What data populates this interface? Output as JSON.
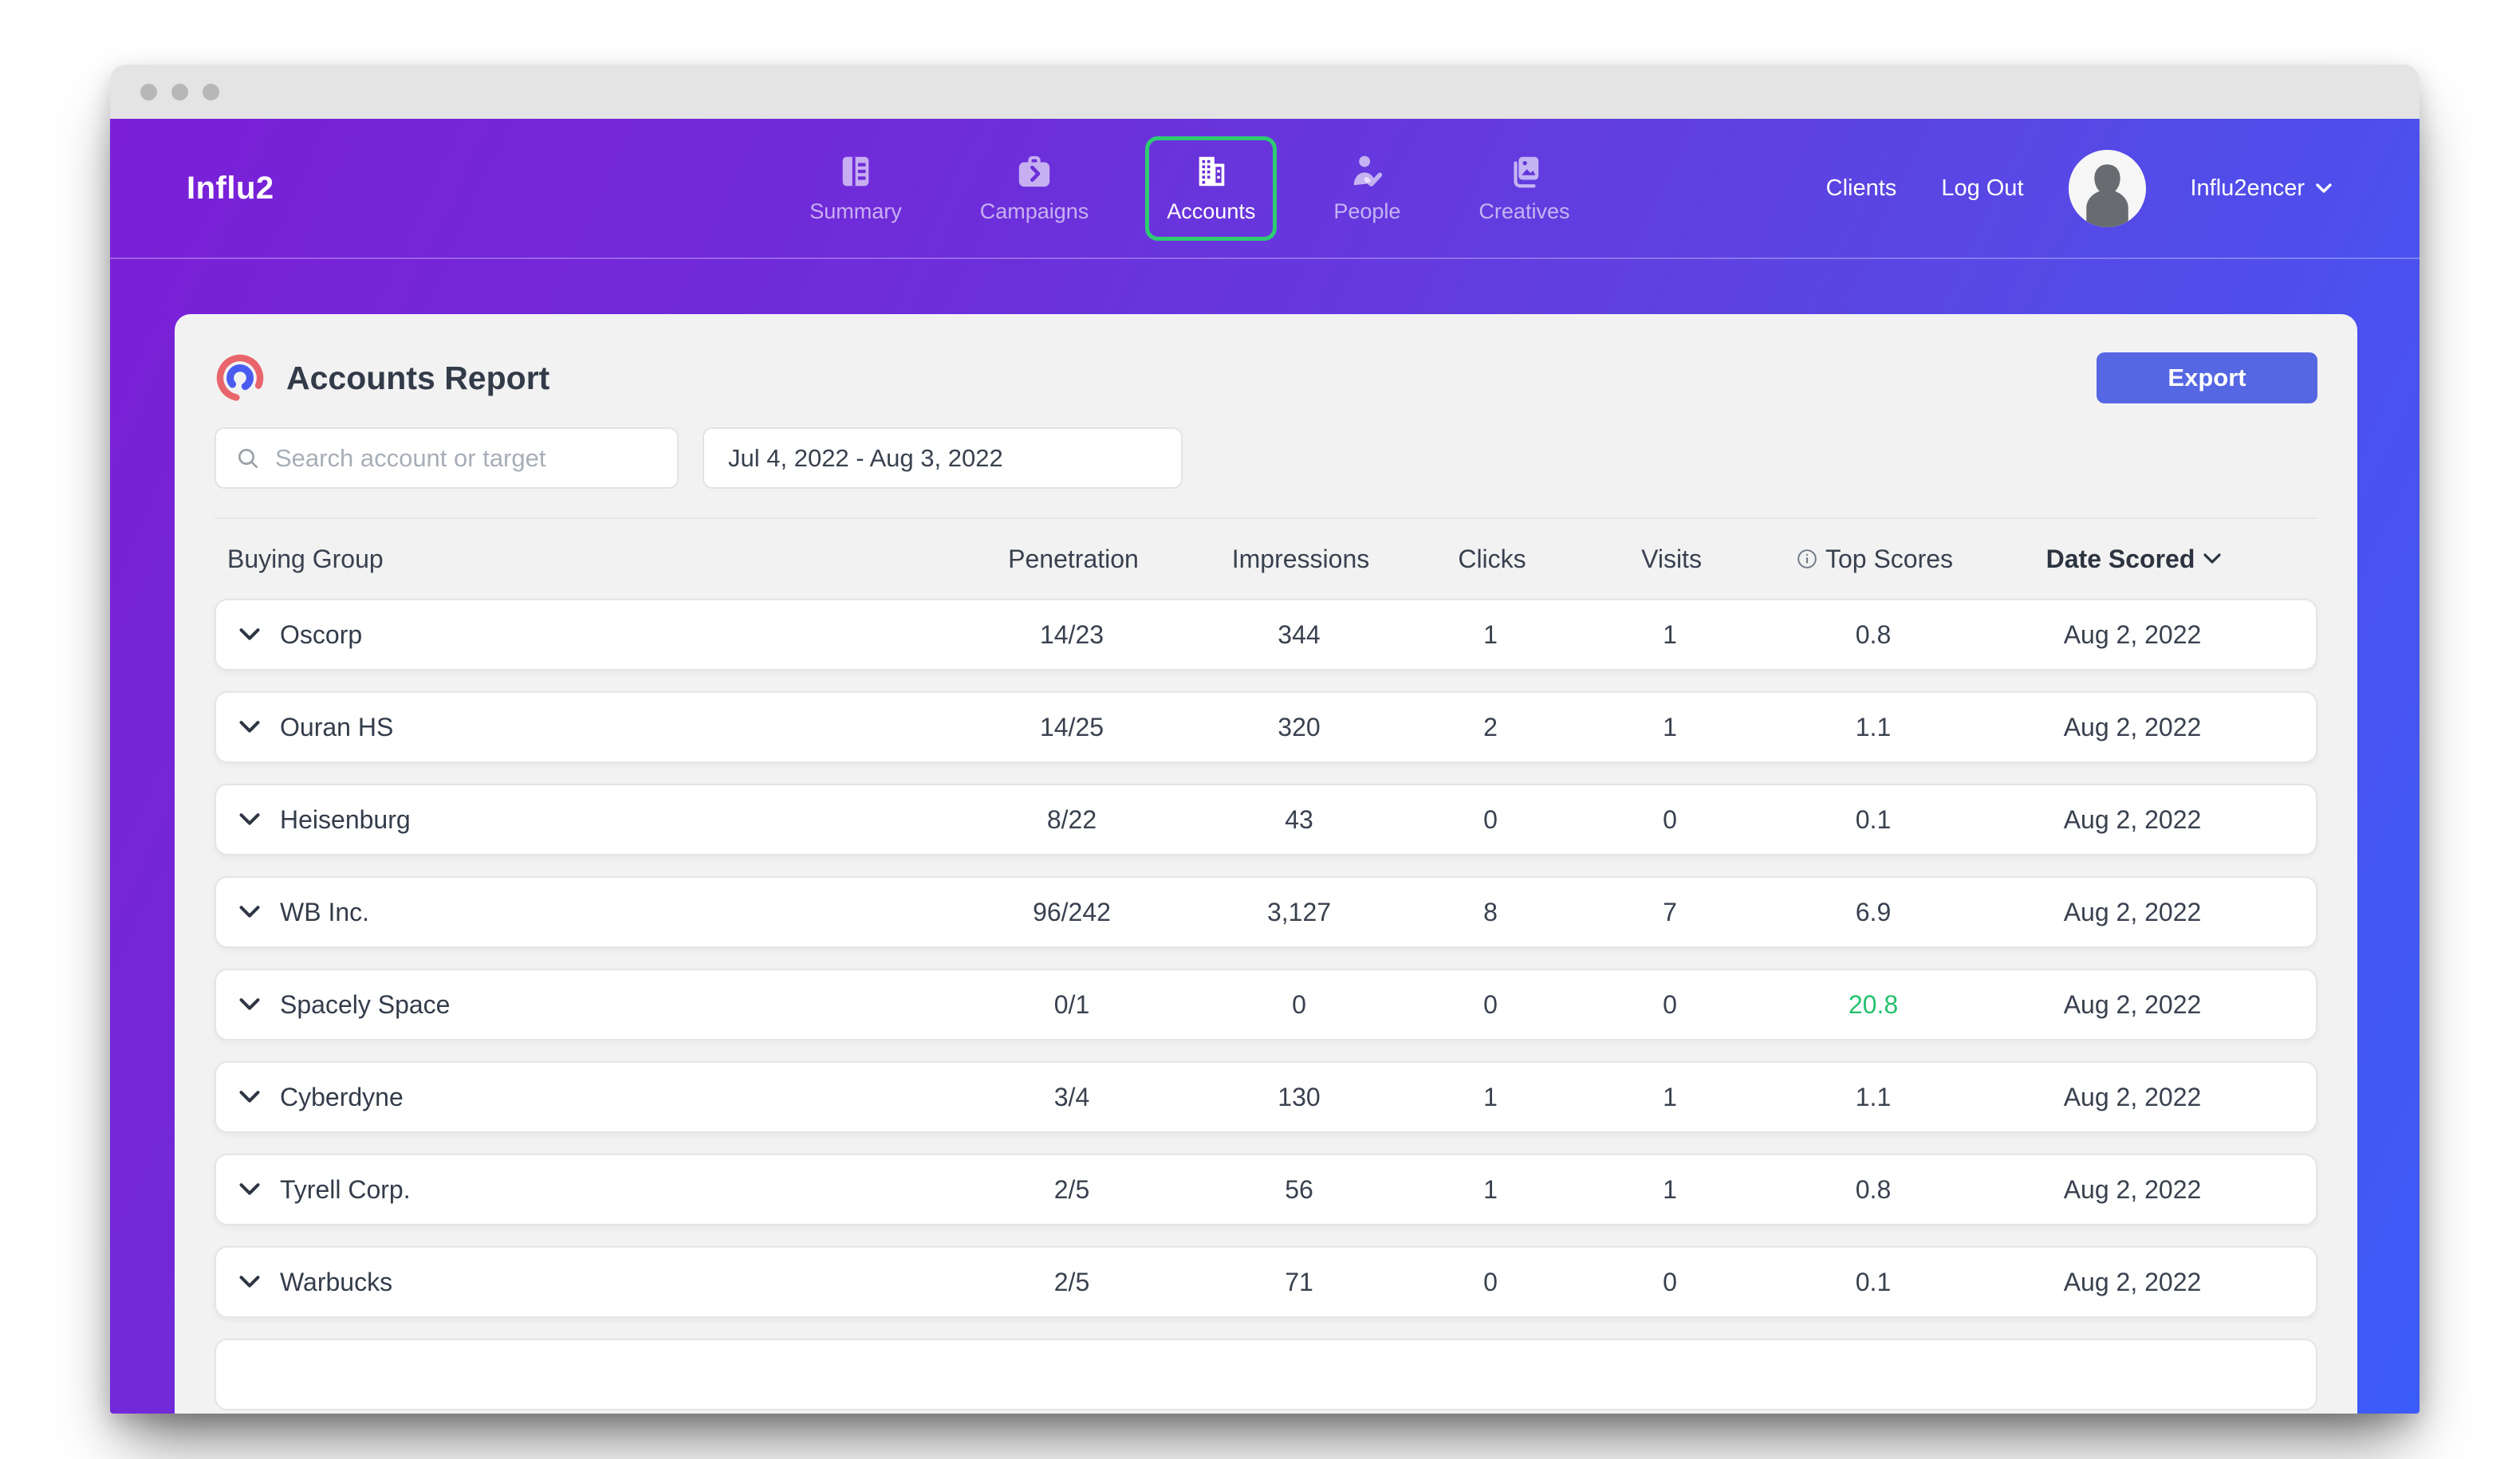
{
  "window": {
    "chrome": "mac-titlebar-inactive"
  },
  "navbar": {
    "logo": "Influ2",
    "tabs": [
      {
        "id": "summary",
        "label": "Summary",
        "icon": "report-icon",
        "active": false
      },
      {
        "id": "campaigns",
        "label": "Campaigns",
        "icon": "briefcase-icon",
        "active": false
      },
      {
        "id": "accounts",
        "label": "Accounts",
        "icon": "building-icon",
        "active": true
      },
      {
        "id": "people",
        "label": "People",
        "icon": "person-check-icon",
        "active": false
      },
      {
        "id": "creatives",
        "label": "Creatives",
        "icon": "image-stack-icon",
        "active": false
      }
    ],
    "right": {
      "clients_label": "Clients",
      "logout_label": "Log Out",
      "account_name": "Influ2encer"
    }
  },
  "report": {
    "title": "Accounts Report",
    "export_label": "Export",
    "search_placeholder": "Search account or target",
    "search_value": "",
    "date_range": "Jul 4, 2022 - Aug 3, 2022"
  },
  "table": {
    "columns": [
      "Buying Group",
      "Penetration",
      "Impressions",
      "Clicks",
      "Visits",
      "Top Scores",
      "Date Scored"
    ],
    "sorted_by": "Date Scored",
    "rows": [
      {
        "name": "Oscorp",
        "penetration": "14/23",
        "impressions": "344",
        "clicks": "1",
        "visits": "1",
        "top_score": "0.8",
        "top_score_highlight": false,
        "date_scored": "Aug 2, 2022"
      },
      {
        "name": "Ouran HS",
        "penetration": "14/25",
        "impressions": "320",
        "clicks": "2",
        "visits": "1",
        "top_score": "1.1",
        "top_score_highlight": false,
        "date_scored": "Aug 2, 2022"
      },
      {
        "name": "Heisenburg",
        "penetration": "8/22",
        "impressions": "43",
        "clicks": "0",
        "visits": "0",
        "top_score": "0.1",
        "top_score_highlight": false,
        "date_scored": "Aug 2, 2022"
      },
      {
        "name": "WB Inc.",
        "penetration": "96/242",
        "impressions": "3,127",
        "clicks": "8",
        "visits": "7",
        "top_score": "6.9",
        "top_score_highlight": false,
        "date_scored": "Aug 2, 2022"
      },
      {
        "name": "Spacely Space",
        "penetration": "0/1",
        "impressions": "0",
        "clicks": "0",
        "visits": "0",
        "top_score": "20.8",
        "top_score_highlight": true,
        "date_scored": "Aug 2, 2022"
      },
      {
        "name": "Cyberdyne",
        "penetration": "3/4",
        "impressions": "130",
        "clicks": "1",
        "visits": "1",
        "top_score": "1.1",
        "top_score_highlight": false,
        "date_scored": "Aug 2, 2022"
      },
      {
        "name": "Tyrell Corp.",
        "penetration": "2/5",
        "impressions": "56",
        "clicks": "1",
        "visits": "1",
        "top_score": "0.8",
        "top_score_highlight": false,
        "date_scored": "Aug 2, 2022"
      },
      {
        "name": "Warbucks",
        "penetration": "2/5",
        "impressions": "71",
        "clicks": "0",
        "visits": "0",
        "top_score": "0.1",
        "top_score_highlight": false,
        "date_scored": "Aug 2, 2022"
      }
    ],
    "partial_row_visible": true
  },
  "colors": {
    "nav_gradient_start": "#7b1fd8",
    "nav_gradient_end": "#3c5cfa",
    "active_tab_border": "#2ecc71",
    "export_button": "#5667e3",
    "score_highlight": "#25c16f",
    "logo_mark_red": "#e8666b",
    "logo_mark_blue": "#4a5cf0"
  }
}
